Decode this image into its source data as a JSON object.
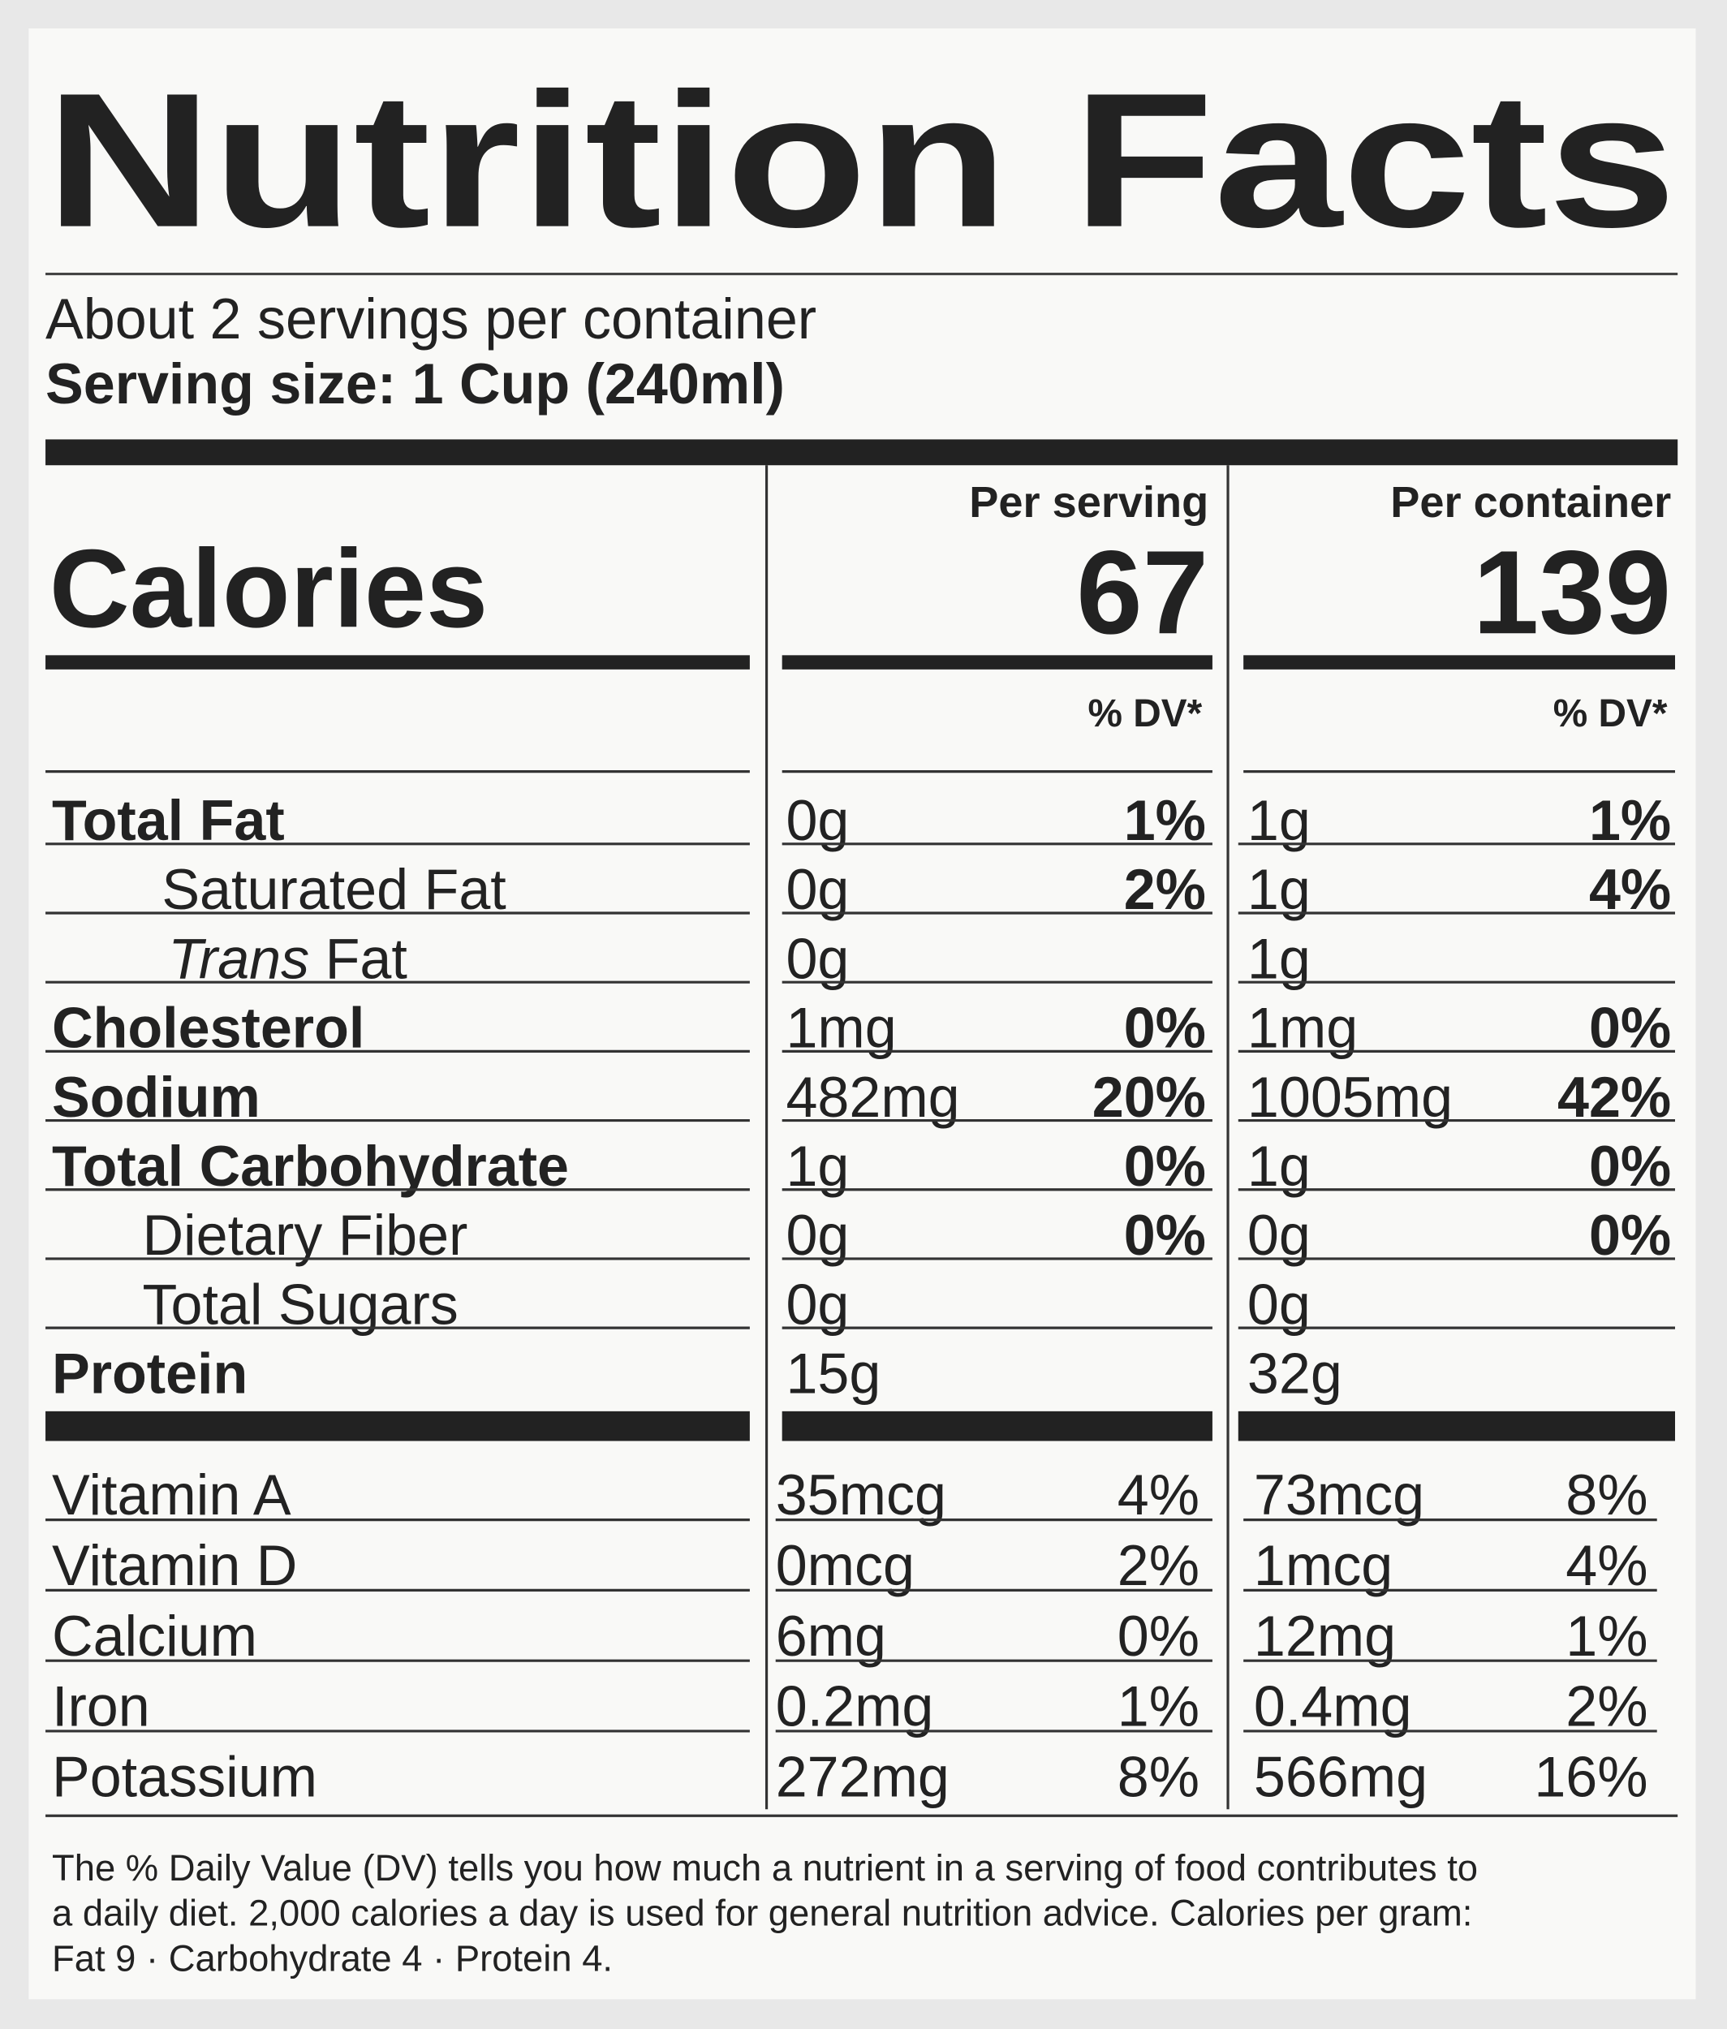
{
  "title": "Nutrition Facts",
  "servings": "About 2 servings per container",
  "serving_size": "Serving size: 1 Cup (240ml)",
  "calories_label": "Calories",
  "columns": [
    {
      "header": "Per serving",
      "calories": 67,
      "dv_header": "% DV*"
    },
    {
      "header": "Per container",
      "calories": 139,
      "dv_header": "% DV*"
    }
  ],
  "nutrients": [
    {
      "name": "Total Fat",
      "style": "bold",
      "values": [
        [
          "0g",
          "1%"
        ],
        [
          "1g",
          "1%"
        ]
      ]
    },
    {
      "name": "Saturated Fat",
      "style": "indent",
      "values": [
        [
          "0g",
          "2%"
        ],
        [
          "1g",
          "4%"
        ]
      ]
    },
    {
      "name_italic": "Trans",
      "name": "Fat",
      "style": "indent",
      "values": [
        [
          "0g"
        ],
        [
          "1g"
        ]
      ]
    },
    {
      "name": "Cholesterol",
      "style": "bold",
      "values": [
        [
          "1mg",
          "0%"
        ],
        [
          "1mg",
          "0%"
        ]
      ]
    },
    {
      "name": "Sodium",
      "style": "bold",
      "values": [
        [
          "482mg",
          "20%"
        ],
        [
          "1005mg",
          "42%"
        ]
      ]
    },
    {
      "name": "Total Carbohydrate",
      "style": "bold",
      "values": [
        [
          "1g",
          "0%"
        ],
        [
          "1g",
          "0%"
        ]
      ]
    },
    {
      "name": "Dietary Fiber",
      "style": "indent",
      "values": [
        [
          "0g",
          "0%"
        ],
        [
          "0g",
          "0%"
        ]
      ]
    },
    {
      "name": "Total Sugars",
      "style": "indent",
      "values": [
        [
          "0g"
        ],
        [
          "0g"
        ]
      ]
    },
    {
      "name": "Protein",
      "style": "bold",
      "values": [
        [
          "15g"
        ],
        [
          "32g"
        ]
      ]
    }
  ],
  "vitamins": [
    {
      "name": "Vitamin A",
      "values": [
        [
          "35mcg",
          "4%"
        ],
        [
          "73mcg",
          "8%"
        ]
      ]
    },
    {
      "name": "Vitamin D",
      "values": [
        [
          "0mcg",
          "2%"
        ],
        [
          "1mcg",
          "4%"
        ]
      ]
    },
    {
      "name": "Calcium",
      "values": [
        [
          "6mg",
          "0%"
        ],
        [
          "12mg",
          "1%"
        ]
      ]
    },
    {
      "name": "Iron",
      "values": [
        [
          "0.2mg",
          "1%"
        ],
        [
          "0.4mg",
          "2%"
        ]
      ]
    },
    {
      "name": "Potassium",
      "values": [
        [
          "272mg",
          "8%"
        ],
        [
          "566mg",
          "16%"
        ]
      ]
    }
  ],
  "footnote": [
    "The % Daily Value (DV) tells you how much a nutrient in a serving of food contributes to",
    "a daily diet. 2,000 calories a day is used for general nutrition advice. Calories per gram:",
    "Fat 9 · Carbohydrate 4 · Protein 4."
  ]
}
